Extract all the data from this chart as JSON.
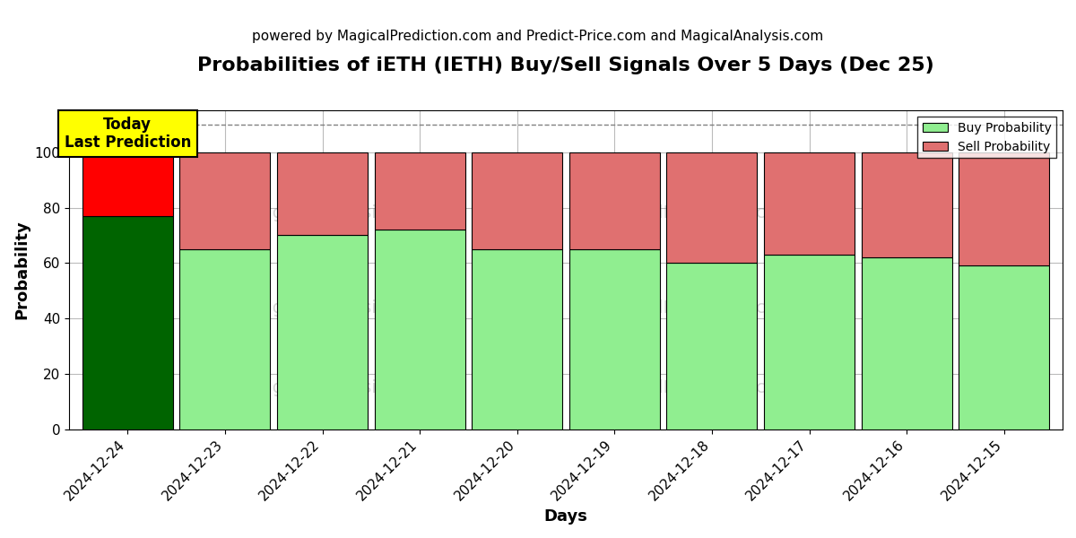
{
  "title": "Probabilities of iETH (IETH) Buy/Sell Signals Over 5 Days (Dec 25)",
  "subtitle": "powered by MagicalPrediction.com and Predict-Price.com and MagicalAnalysis.com",
  "xlabel": "Days",
  "ylabel": "Probability",
  "categories": [
    "2024-12-24",
    "2024-12-23",
    "2024-12-22",
    "2024-12-21",
    "2024-12-20",
    "2024-12-19",
    "2024-12-18",
    "2024-12-17",
    "2024-12-16",
    "2024-12-15"
  ],
  "buy_values": [
    77,
    65,
    70,
    72,
    65,
    65,
    60,
    63,
    62,
    59
  ],
  "sell_values": [
    23,
    35,
    30,
    28,
    35,
    35,
    40,
    37,
    38,
    41
  ],
  "buy_colors": [
    "#006400",
    "#90EE90",
    "#90EE90",
    "#90EE90",
    "#90EE90",
    "#90EE90",
    "#90EE90",
    "#90EE90",
    "#90EE90",
    "#90EE90"
  ],
  "sell_colors": [
    "#FF0000",
    "#E07070",
    "#E07070",
    "#E07070",
    "#E07070",
    "#E07070",
    "#E07070",
    "#E07070",
    "#E07070",
    "#E07070"
  ],
  "legend_buy_color": "#90EE90",
  "legend_sell_color": "#E07070",
  "today_label": "Today\nLast Prediction",
  "today_bg_color": "#FFFF00",
  "ylim": [
    0,
    115
  ],
  "yticks": [
    0,
    20,
    40,
    60,
    80,
    100
  ],
  "dashed_line_y": 110,
  "background_color": "#ffffff",
  "grid_color": "#bbbbbb",
  "title_fontsize": 16,
  "subtitle_fontsize": 11,
  "axis_label_fontsize": 13,
  "tick_fontsize": 11,
  "bar_width": 0.93
}
